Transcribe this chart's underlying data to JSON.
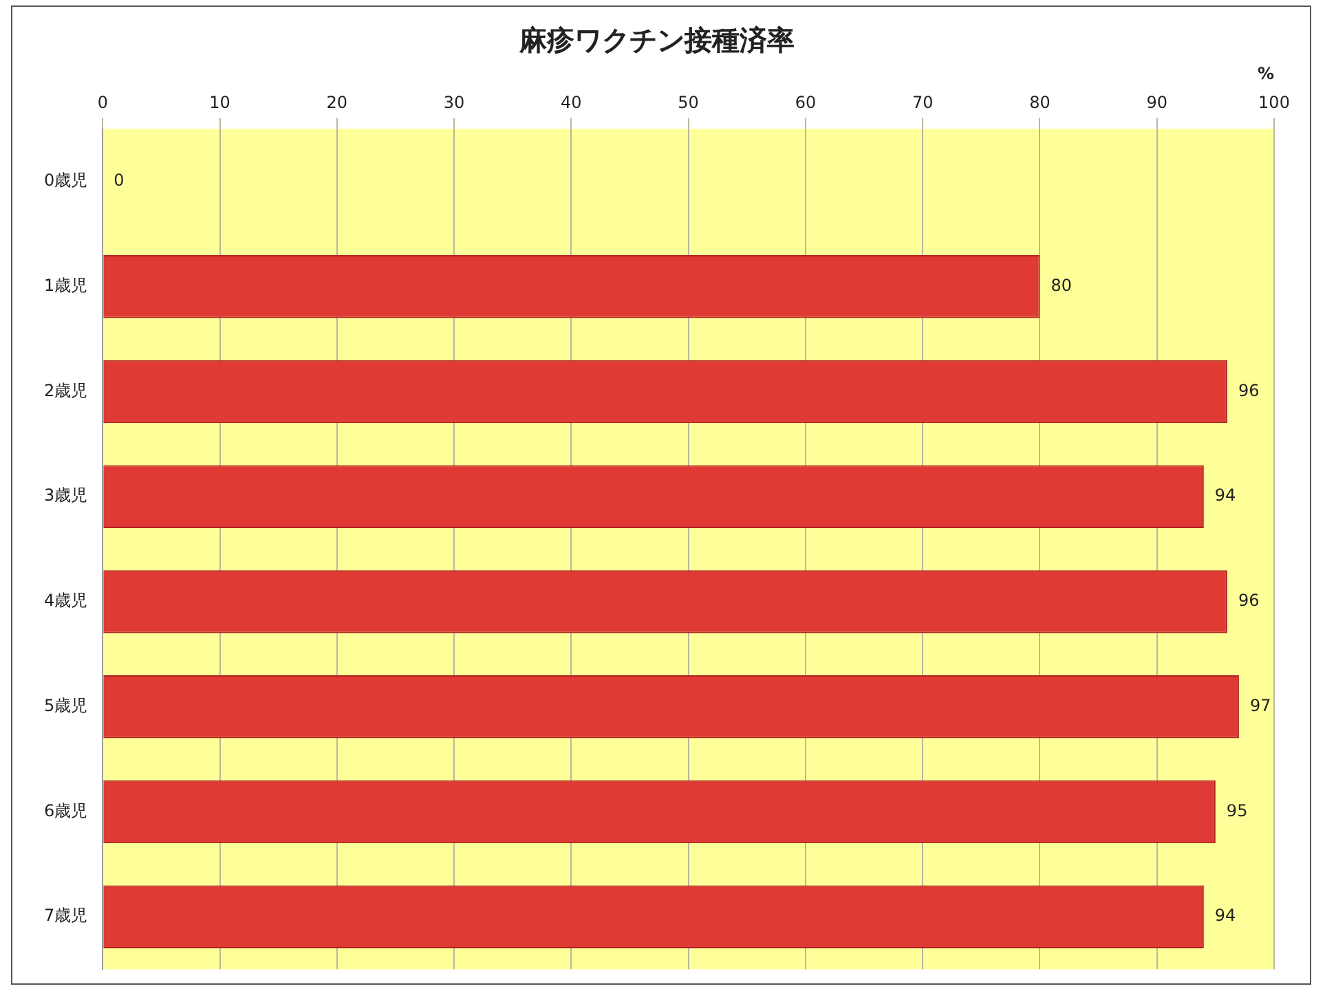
{
  "chart_data": {
    "type": "bar",
    "orientation": "horizontal",
    "title": "麻疹ワクチン接種済率",
    "xlabel": "%",
    "categories": [
      "0歳児",
      "1歳児",
      "2歳児",
      "3歳児",
      "4歳児",
      "5歳児",
      "6歳児",
      "7歳児"
    ],
    "values": [
      0,
      80,
      96,
      94,
      96,
      97,
      95,
      94
    ],
    "color": "#e03a34",
    "xlim": [
      0,
      100
    ],
    "xticks": [
      0,
      10,
      20,
      30,
      40,
      50,
      60,
      70,
      80,
      90,
      100
    ],
    "grid": "x",
    "data_labels": true
  }
}
